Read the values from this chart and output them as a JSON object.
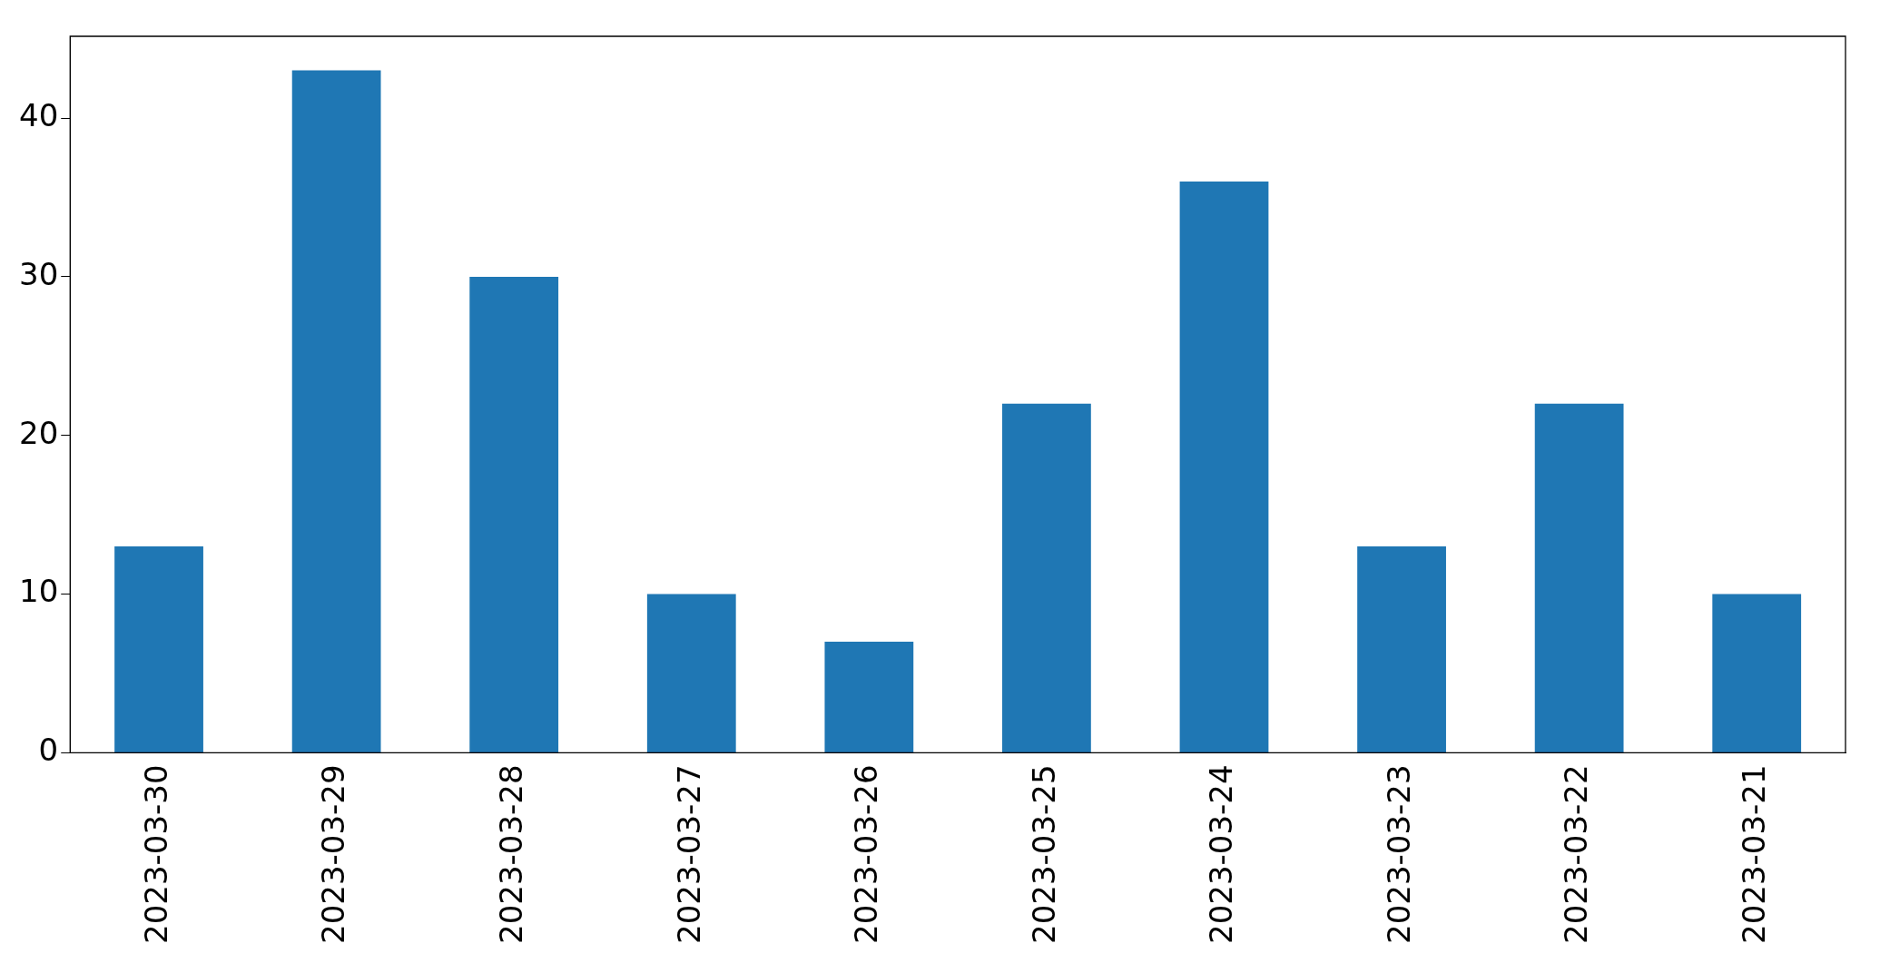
{
  "chart_data": {
    "type": "bar",
    "categories": [
      "2023-03-30",
      "2023-03-29",
      "2023-03-28",
      "2023-03-27",
      "2023-03-26",
      "2023-03-25",
      "2023-03-24",
      "2023-03-23",
      "2023-03-22",
      "2023-03-21"
    ],
    "values": [
      13,
      43,
      30,
      10,
      7,
      22,
      36,
      13,
      22,
      10
    ],
    "color": "#1f77b4",
    "ylim": [
      0,
      45.15
    ],
    "yticks": [
      0,
      10,
      20,
      30,
      40
    ],
    "grid": false,
    "legend": false
  }
}
